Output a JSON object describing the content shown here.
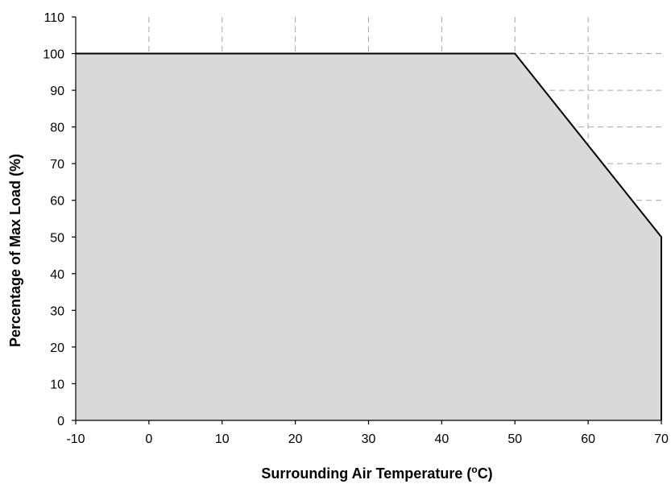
{
  "chart_data": {
    "type": "area",
    "xlabel": "Surrounding Air Temperature (",
    "xlabel_sup": "o",
    "xlabel_tail": "C)",
    "ylabel": "Percentage of Max Load (%)",
    "xlim": [
      -10,
      70
    ],
    "ylim": [
      0,
      110
    ],
    "x_ticks": [
      "-10",
      "0",
      "10",
      "20",
      "30",
      "40",
      "50",
      "60",
      "70"
    ],
    "y_ticks": [
      "0",
      "10",
      "20",
      "30",
      "40",
      "50",
      "60",
      "70",
      "80",
      "90",
      "100",
      "110"
    ],
    "grid": true,
    "series": [
      {
        "x": [
          -10,
          50,
          70
        ],
        "y": [
          100,
          100,
          50
        ]
      }
    ],
    "colors": {
      "fill": "#d9d9d9",
      "line": "#000000"
    }
  }
}
